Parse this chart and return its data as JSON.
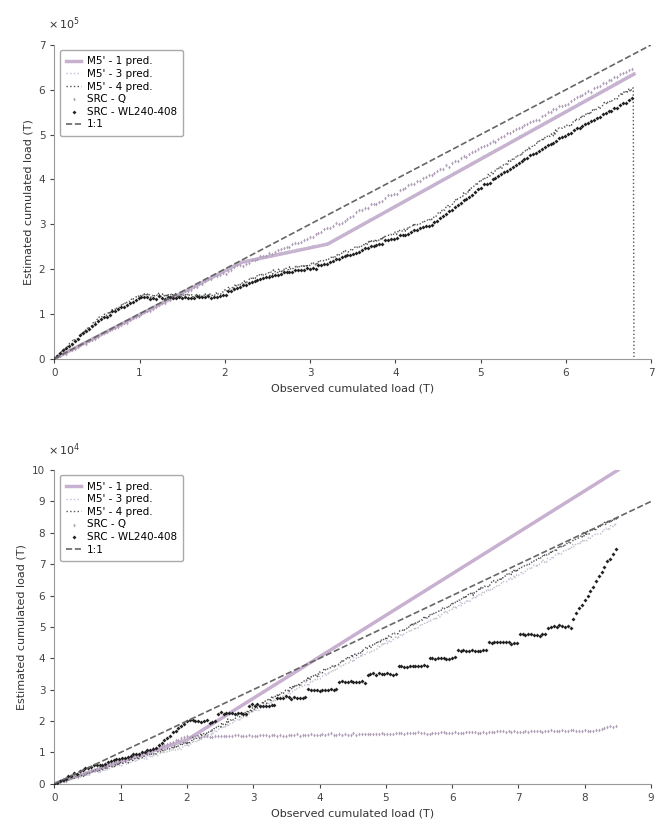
{
  "panel_A": {
    "xlabel": "Observed cumulated load (T)",
    "ylabel": "Estimated cumulated load (T)",
    "xlim": [
      0,
      700000
    ],
    "ylim": [
      0,
      700000
    ],
    "xticks": [
      0,
      100000,
      200000,
      300000,
      400000,
      500000,
      600000,
      700000
    ],
    "yticks": [
      0,
      100000,
      200000,
      300000,
      400000,
      500000,
      600000,
      700000
    ],
    "xticklabels": [
      "0",
      "1",
      "2",
      "3",
      "4",
      "5",
      "6",
      "7"
    ],
    "yticklabels": [
      "0",
      "1",
      "2",
      "3",
      "4",
      "5",
      "6",
      "7"
    ],
    "exp_label": "x 10^5",
    "series": {
      "src_q": {
        "label": "SRC - Q",
        "color": "#b0a0b8",
        "marker": "d",
        "ms": 4,
        "ls": "none",
        "lw": 0,
        "zorder": 3
      },
      "src_wl": {
        "label": "SRC - WL240-408",
        "color": "#222222",
        "marker": "D",
        "ms": 4,
        "ls": "none",
        "lw": 0,
        "zorder": 4
      },
      "m5_1": {
        "label": "M5' - 1 pred.",
        "color": "#c8b0d0",
        "marker": "",
        "ms": 0,
        "ls": "-",
        "lw": 2.5,
        "zorder": 1
      },
      "m5_3": {
        "label": "M5' - 3 pred.",
        "color": "#c0c0d0",
        "marker": ".",
        "ms": 1.5,
        "ls": ":",
        "lw": 1.0,
        "zorder": 2
      },
      "m5_4": {
        "label": "M5' - 4 pred.",
        "color": "#555555",
        "marker": ".",
        "ms": 1.5,
        "ls": ":",
        "lw": 1.0,
        "zorder": 2
      },
      "line11": {
        "label": "1:1",
        "color": "#666666",
        "marker": "",
        "ms": 0,
        "ls": "--",
        "lw": 1.2,
        "zorder": 5
      }
    }
  },
  "panel_B": {
    "xlabel": "Observed cumulated load (T)",
    "ylabel": "Estimated cumulated load (T)",
    "xlim": [
      0,
      90000
    ],
    "ylim": [
      0,
      100000
    ],
    "xticks": [
      0,
      10000,
      20000,
      30000,
      40000,
      50000,
      60000,
      70000,
      80000,
      90000
    ],
    "yticks": [
      0,
      10000,
      20000,
      30000,
      40000,
      50000,
      60000,
      70000,
      80000,
      90000,
      100000
    ],
    "xticklabels": [
      "0",
      "1",
      "2",
      "3",
      "4",
      "5",
      "6",
      "7",
      "8",
      "9"
    ],
    "yticklabels": [
      "0",
      "1",
      "2",
      "3",
      "4",
      "5",
      "6",
      "7",
      "8",
      "9",
      "10"
    ],
    "exp_label": "x 10^4",
    "series": {
      "src_q": {
        "label": "SRC - Q",
        "color": "#b0a0b8",
        "marker": "d",
        "ms": 4,
        "ls": "none",
        "lw": 0,
        "zorder": 3
      },
      "src_wl": {
        "label": "SRC - WL240-408",
        "color": "#222222",
        "marker": "D",
        "ms": 4,
        "ls": "none",
        "lw": 0,
        "zorder": 4
      },
      "m5_1": {
        "label": "M5' - 1 pred.",
        "color": "#c8b0d0",
        "marker": "",
        "ms": 0,
        "ls": "-",
        "lw": 2.5,
        "zorder": 1
      },
      "m5_3": {
        "label": "M5' - 3 pred.",
        "color": "#c0c0d0",
        "marker": ".",
        "ms": 1.5,
        "ls": ":",
        "lw": 1.0,
        "zorder": 2
      },
      "m5_4": {
        "label": "M5' - 4 pred.",
        "color": "#555555",
        "marker": ".",
        "ms": 1.5,
        "ls": ":",
        "lw": 1.0,
        "zorder": 2
      },
      "line11": {
        "label": "1:1",
        "color": "#666666",
        "marker": "",
        "ms": 0,
        "ls": "--",
        "lw": 1.2,
        "zorder": 5
      }
    }
  },
  "bg": "#ffffff",
  "legend_fs": 7.5,
  "axis_fs": 8,
  "tick_fs": 7.5
}
